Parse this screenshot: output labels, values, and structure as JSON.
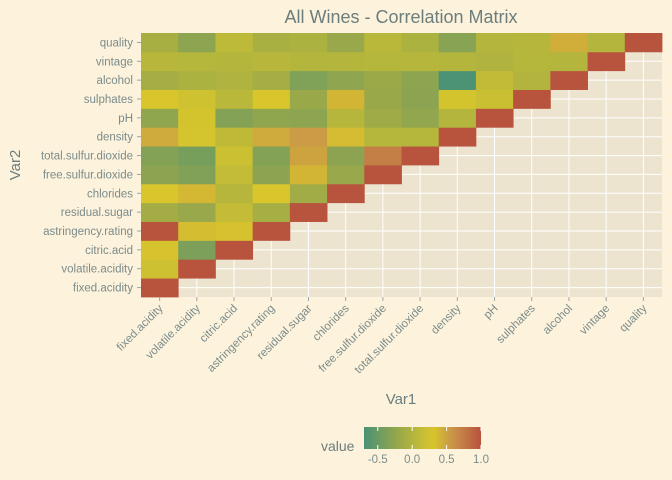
{
  "chart_data": {
    "type": "heatmap",
    "title": "All Wines - Correlation Matrix",
    "xlabel": "Var1",
    "ylabel": "Var2",
    "variables": [
      "fixed.acidity",
      "volatile.acidity",
      "citric.acid",
      "astringency.rating",
      "residual.sugar",
      "chlorides",
      "free.sulfur.dioxide",
      "total.sulfur.dioxide",
      "density",
      "pH",
      "sulphates",
      "alcohol",
      "vintage",
      "quality"
    ],
    "correlations": [
      [
        1.0,
        0.22,
        0.32,
        1.0,
        -0.11,
        0.3,
        -0.28,
        -0.33,
        0.46,
        -0.25,
        0.3,
        -0.1,
        0.05,
        -0.08
      ],
      [
        0.22,
        1.0,
        -0.38,
        0.35,
        -0.2,
        0.38,
        -0.35,
        -0.41,
        0.27,
        0.26,
        0.23,
        -0.04,
        0.03,
        -0.27
      ],
      [
        0.32,
        -0.38,
        1.0,
        0.33,
        0.14,
        0.04,
        0.13,
        0.2,
        0.1,
        -0.33,
        0.06,
        -0.01,
        0.02,
        0.09
      ],
      [
        1.0,
        0.35,
        0.33,
        1.0,
        -0.09,
        0.3,
        -0.28,
        -0.33,
        0.46,
        -0.25,
        0.3,
        -0.1,
        0.05,
        -0.07
      ],
      [
        -0.11,
        -0.2,
        0.14,
        -0.09,
        1.0,
        -0.13,
        0.4,
        0.5,
        0.55,
        -0.27,
        -0.19,
        -0.36,
        0.02,
        -0.04
      ],
      [
        0.3,
        0.38,
        0.04,
        0.3,
        -0.13,
        1.0,
        -0.2,
        -0.28,
        0.36,
        0.04,
        0.4,
        -0.26,
        0.01,
        -0.2
      ],
      [
        -0.28,
        -0.35,
        0.13,
        -0.28,
        0.4,
        -0.2,
        1.0,
        0.72,
        0.03,
        -0.15,
        -0.19,
        -0.18,
        0.03,
        0.06
      ],
      [
        -0.33,
        -0.41,
        0.2,
        -0.33,
        0.5,
        -0.28,
        0.72,
        1.0,
        0.03,
        -0.24,
        -0.28,
        -0.27,
        0.04,
        -0.04
      ],
      [
        0.46,
        0.27,
        0.1,
        0.46,
        0.55,
        0.36,
        0.03,
        0.03,
        1.0,
        0.01,
        0.26,
        -0.69,
        0.02,
        -0.31
      ],
      [
        -0.25,
        0.26,
        -0.33,
        -0.25,
        -0.27,
        0.04,
        -0.15,
        -0.24,
        0.01,
        1.0,
        0.19,
        0.12,
        -0.01,
        0.02
      ],
      [
        0.3,
        0.23,
        0.06,
        0.3,
        -0.19,
        0.4,
        -0.19,
        -0.28,
        0.26,
        0.19,
        1.0,
        -0.0,
        0.03,
        0.04
      ],
      [
        -0.1,
        -0.04,
        -0.01,
        -0.1,
        -0.36,
        -0.26,
        -0.18,
        -0.27,
        -0.69,
        0.12,
        -0.0,
        1.0,
        0.01,
        0.44
      ],
      [
        0.05,
        0.03,
        0.02,
        0.05,
        0.02,
        0.01,
        0.03,
        0.04,
        0.02,
        -0.01,
        0.03,
        0.01,
        1.0,
        0.02
      ],
      [
        -0.08,
        -0.27,
        0.09,
        -0.07,
        -0.04,
        -0.2,
        0.06,
        -0.04,
        -0.31,
        0.02,
        0.04,
        0.44,
        0.02,
        1.0
      ]
    ],
    "lower_triangle_only": true,
    "legend": {
      "title": "value",
      "position": "bottom",
      "ticks": [
        -0.5,
        0.0,
        0.5,
        1.0
      ],
      "tick_labels": [
        "-0.5",
        "0.0",
        "0.5",
        "1.0"
      ],
      "range": [
        -0.7,
        1.0
      ],
      "colors": [
        "#4a9275",
        "#98a84a",
        "#d8c62c",
        "#c8924a",
        "#b8533d"
      ]
    },
    "grid": true
  },
  "colors": {
    "background": "#fdf3dc",
    "panel": "#ede4d0",
    "gridline": "#ffffff",
    "text": "#6b7d7d",
    "axis_text": "#7b8b8b"
  }
}
